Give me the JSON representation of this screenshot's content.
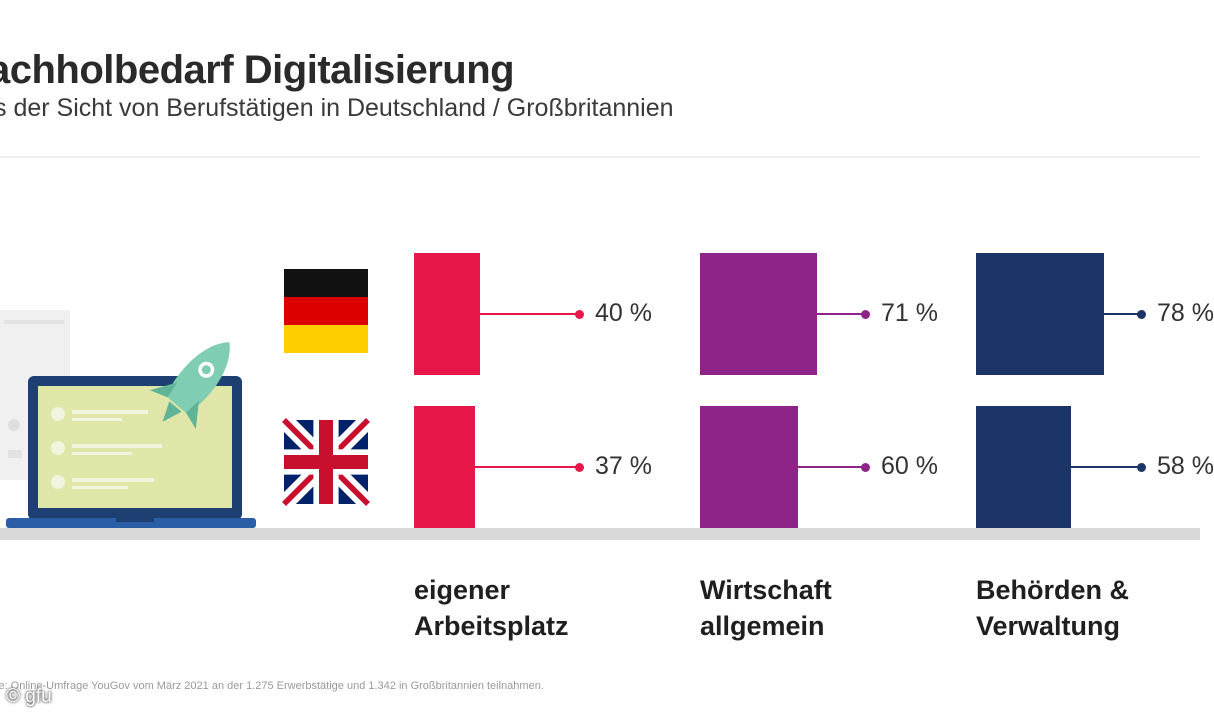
{
  "header": {
    "title": "achholbedarf Digitalisierung",
    "subtitle": "s der Sicht von Berufstätigen in Deutschland / Großbritannien"
  },
  "chart_data": {
    "type": "bar",
    "title": "achholbedarf Digitalisierung",
    "subtitle": "s der Sicht von Berufstätigen in Deutschland / Großbritannien",
    "unit": "%",
    "categories": [
      {
        "label_line1": "eigener",
        "label_line2": "Arbeitsplatz",
        "color": "#e8174a"
      },
      {
        "label_line1": "Wirtschaft",
        "label_line2": "allgemein",
        "color": "#8e2488"
      },
      {
        "label_line1": "Behörden &",
        "label_line2": "Verwaltung",
        "color": "#1c3568"
      }
    ],
    "series": [
      {
        "name": "Deutschland",
        "flag": "germany-flag",
        "values": [
          40,
          71,
          78
        ],
        "labels": [
          "40 %",
          "71 %",
          "78 %"
        ]
      },
      {
        "name": "Großbritannien",
        "flag": "uk-flag",
        "values": [
          37,
          60,
          58
        ],
        "labels": [
          "37 %",
          "60 %",
          "58 %"
        ]
      }
    ],
    "ylim": [
      0,
      100
    ],
    "legend": "left flags"
  },
  "footer": {
    "source": "le: Online-Umfrage YouGov vom März 2021 an der 1.275 Erwerbstätige und 1.342 in Großbritannien teilnahmen.",
    "credit": "© gfu"
  },
  "colors": {
    "pink": "#e8174a",
    "purple": "#8e2488",
    "navy": "#1c3568",
    "baseline": "#d9d9d9"
  }
}
